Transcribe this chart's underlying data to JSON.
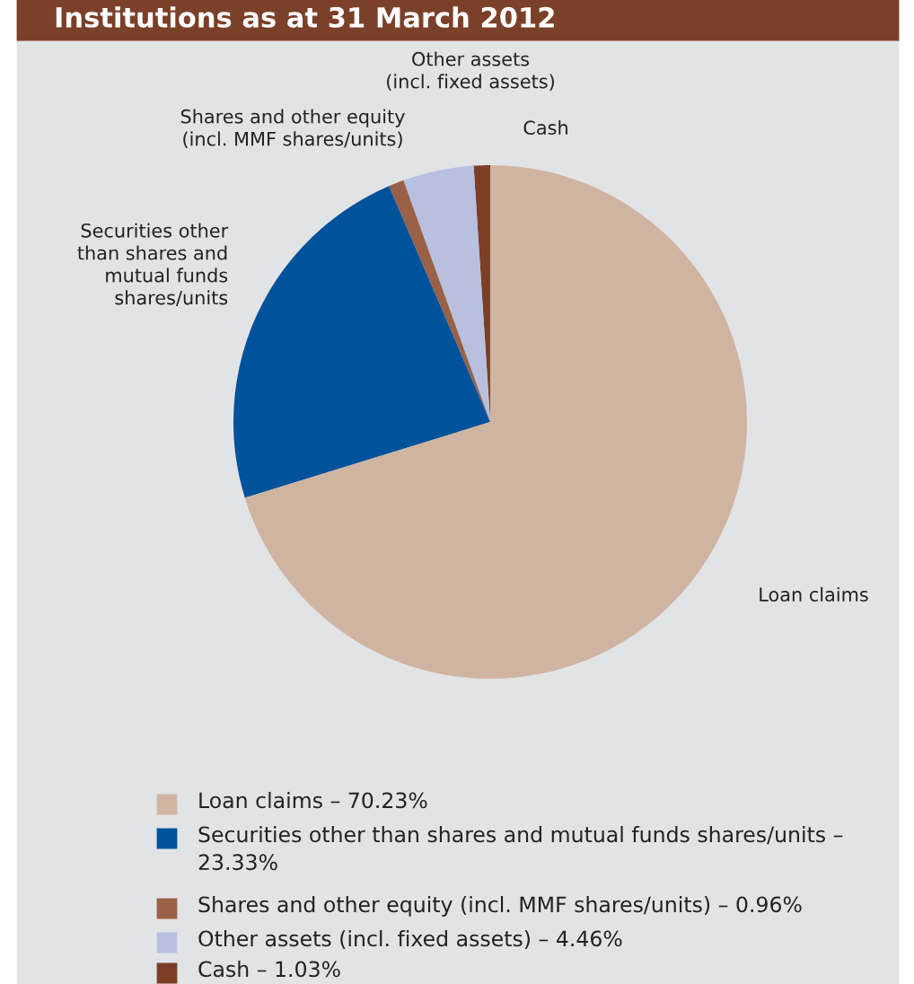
{
  "chart_data": {
    "type": "pie",
    "title": "Institutions as at 31 March 2012",
    "categories": [
      "Loan claims – 70.23%",
      "Securities other than shares and mutual funds shares/units – 23.33%",
      "Shares and other equity (incl. MMF shares/units) – 0.96%",
      "Other assets (incl. fixed assets) – 4.46%",
      "Cash – 1.03%"
    ],
    "values": [
      70.23,
      23.33,
      0.96,
      4.46,
      1.03
    ],
    "colors": [
      "#cfb4a2",
      "#00529b",
      "#9a6148",
      "#b8c0e0",
      "#7b3f27"
    ],
    "annotations": [
      "Loan claims",
      "Securities other\nthan shares and\nmutual funds\nshares/units",
      "Shares and other equity\n(incl. MMF shares/units)",
      "Other assets\n(incl. fixed assets)",
      "Cash"
    ],
    "legend": "bottom"
  }
}
